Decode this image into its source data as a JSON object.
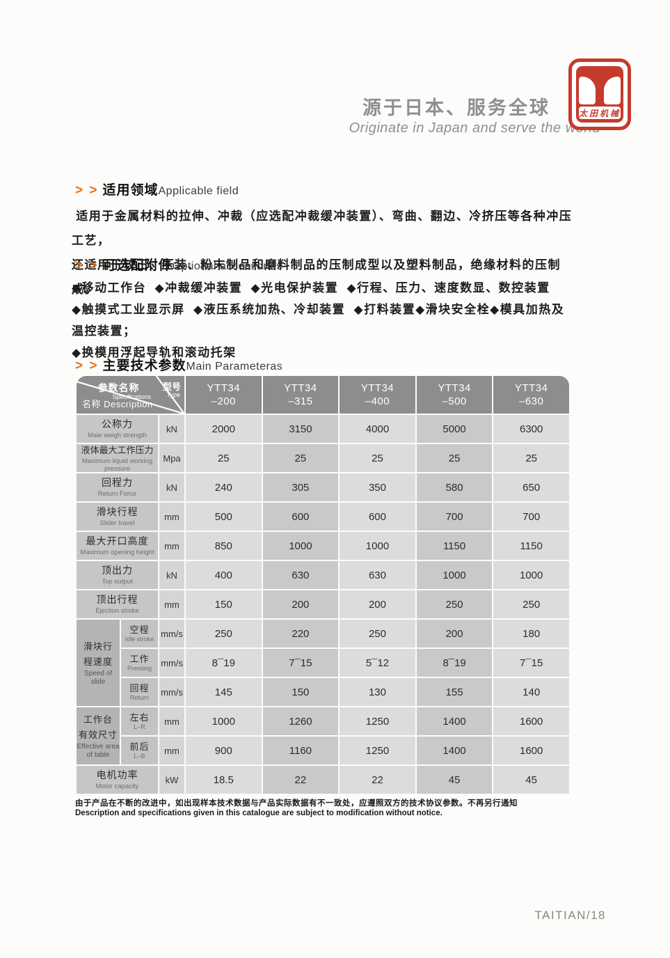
{
  "brand": {
    "tagline_zh": "源于日本、服务全球",
    "tagline_en": "Originate in Japan and serve the world",
    "logo_text": "太田机械",
    "logo_color": "#c53b2c"
  },
  "applicable": {
    "chevrons": "> >",
    "title_zh": "适用领域",
    "title_en": "Applicable field",
    "lines": [
      " 适用于金属材料的拉伸、冲裁（应选配冲裁缓冲装置）、弯曲、翻边、冷挤压等各种冲压工艺，",
      "还适用于较正、压装、粉末制品和磨料制品的压制成型以及塑料制品，绝缘材料的压制成。"
    ]
  },
  "accessories": {
    "chevrons": "> >",
    "title_zh": "可选配附件",
    "title_en": "Optional accessories",
    "lines": [
      "◆移动工作台  ◆冲裁缓冲装置  ◆光电保护装置  ◆行程、压力、速度数显、数控装置",
      "◆触摸式工业显示屏  ◆液压系统加热、冷却装置  ◆打料装置◆滑块安全栓◆模具加热及温控装置；",
      "◆换模用浮起导轨和滚动托架"
    ]
  },
  "parameters": {
    "chevrons": "> >",
    "title_zh": "主要技术参数",
    "title_en": "Main Parameteras"
  },
  "table": {
    "corner": {
      "spec_zh": "参数名称",
      "spec_en": "Specifications",
      "type_zh": "型号",
      "type_en": "Type",
      "desc": "名称 Description"
    },
    "models": [
      {
        "l1": "YTT34",
        "l2": "–200"
      },
      {
        "l1": "YTT34",
        "l2": "–315"
      },
      {
        "l1": "YTT34",
        "l2": "–400"
      },
      {
        "l1": "YTT34",
        "l2": "–500"
      },
      {
        "l1": "YTT34",
        "l2": "–630"
      }
    ],
    "rows": [
      {
        "label_zh": "公称力",
        "label_en": "Male weigh strength",
        "unit": "kN",
        "values": [
          "2000",
          "3150",
          "4000",
          "5000",
          "6300"
        ]
      },
      {
        "label_zh": "液体最大工作压力",
        "label_en": "Maximum liquid working pressure",
        "unit": "Mpa",
        "values": [
          "25",
          "25",
          "25",
          "25",
          "25"
        ]
      },
      {
        "label_zh": "回程力",
        "label_en": "Return Force",
        "unit": "kN",
        "values": [
          "240",
          "305",
          "350",
          "580",
          "650"
        ]
      },
      {
        "label_zh": "滑块行程",
        "label_en": "Slider travel",
        "unit": "mm",
        "values": [
          "500",
          "600",
          "600",
          "700",
          "700"
        ]
      },
      {
        "label_zh": "最大开口高度",
        "label_en": "Maximum opening height",
        "unit": "mm",
        "values": [
          "850",
          "1000",
          "1000",
          "1150",
          "1150"
        ]
      },
      {
        "label_zh": "顶出力",
        "label_en": "Top output",
        "unit": "kN",
        "values": [
          "400",
          "630",
          "630",
          "1000",
          "1000"
        ]
      },
      {
        "label_zh": "顶出行程",
        "label_en": "Ejection stroke",
        "unit": "mm",
        "values": [
          "150",
          "200",
          "200",
          "250",
          "250"
        ]
      },
      {
        "group": {
          "zh_lines": [
            "滑块行",
            "程速度"
          ],
          "en_lines": [
            "Speed of",
            "slide"
          ],
          "span": 3
        },
        "label_zh": "空程",
        "label_en": "Idle stroke",
        "unit": "mm/s",
        "values": [
          "250",
          "220",
          "250",
          "200",
          "180"
        ]
      },
      {
        "in_group": true,
        "label_zh": "工作",
        "label_en": "Pressing",
        "unit": "mm/s",
        "values": [
          "8¯19",
          "7¯15",
          "5¯12",
          "8¯19",
          "7¯15"
        ]
      },
      {
        "in_group": true,
        "label_zh": "回程",
        "label_en": "Return",
        "unit": "mm/s",
        "values": [
          "145",
          "150",
          "130",
          "155",
          "140"
        ]
      },
      {
        "group": {
          "zh_lines": [
            "工作台",
            "有效尺寸"
          ],
          "en_lines": [
            "Effective area",
            "of table"
          ],
          "span": 2
        },
        "label_zh": "左右",
        "label_en": "L–R",
        "unit": "mm",
        "values": [
          "1000",
          "1260",
          "1250",
          "1400",
          "1600"
        ]
      },
      {
        "in_group": true,
        "label_zh": "前后",
        "label_en": "L–B",
        "unit": "mm",
        "values": [
          "900",
          "1160",
          "1250",
          "1400",
          "1600"
        ]
      },
      {
        "label_zh": "电机功率",
        "label_en": "Motor capacity",
        "unit": "kW",
        "values": [
          "18.5",
          "22",
          "22",
          "45",
          "45"
        ]
      }
    ]
  },
  "footnote": {
    "zh": "由于产品在不断的改进中，如出现样本技术数据与产品实际数据有不一致处，应遵照双方的技术协议参数。不再另行通知",
    "en": "Description and specifications given in this catalogue are subject to modification without notice."
  },
  "footer": {
    "page_label": "TAITIAN/18"
  }
}
